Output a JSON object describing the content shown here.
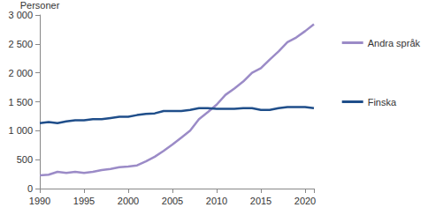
{
  "chart_data": {
    "type": "line",
    "y_label": "Personer",
    "x": [
      1990,
      1991,
      1992,
      1993,
      1994,
      1995,
      1996,
      1997,
      1998,
      1999,
      2000,
      2001,
      2002,
      2003,
      2004,
      2005,
      2006,
      2007,
      2008,
      2009,
      2010,
      2011,
      2012,
      2013,
      2014,
      2015,
      2016,
      2017,
      2018,
      2019,
      2020,
      2021
    ],
    "series": [
      {
        "name": "Andra språk",
        "color": "#9b8bc7",
        "values": [
          230,
          240,
          290,
          270,
          290,
          270,
          290,
          320,
          340,
          370,
          380,
          400,
          470,
          550,
          650,
          760,
          880,
          1000,
          1200,
          1320,
          1450,
          1620,
          1730,
          1850,
          2000,
          2080,
          2230,
          2370,
          2530,
          2610,
          2720,
          2840
        ]
      },
      {
        "name": "Finska",
        "color": "#1f4e8a",
        "values": [
          1130,
          1150,
          1130,
          1160,
          1180,
          1180,
          1200,
          1200,
          1220,
          1240,
          1240,
          1270,
          1290,
          1300,
          1340,
          1340,
          1340,
          1360,
          1390,
          1390,
          1380,
          1380,
          1380,
          1390,
          1390,
          1360,
          1360,
          1390,
          1410,
          1410,
          1410,
          1390
        ]
      }
    ],
    "xlim": [
      1990,
      2021
    ],
    "xticks": [
      1990,
      1995,
      2000,
      2005,
      2010,
      2015,
      2020
    ],
    "ylim": [
      0,
      3000
    ],
    "yticks": [
      0,
      500,
      {
        "value": 1000,
        "label": "1 000"
      },
      {
        "value": 1500,
        "label": "1 500"
      },
      {
        "value": 2000,
        "label": "2 000"
      },
      {
        "value": 2500,
        "label": "2 500"
      },
      {
        "value": 3000,
        "label": "3 000"
      }
    ],
    "grid": false,
    "legend": "right"
  }
}
